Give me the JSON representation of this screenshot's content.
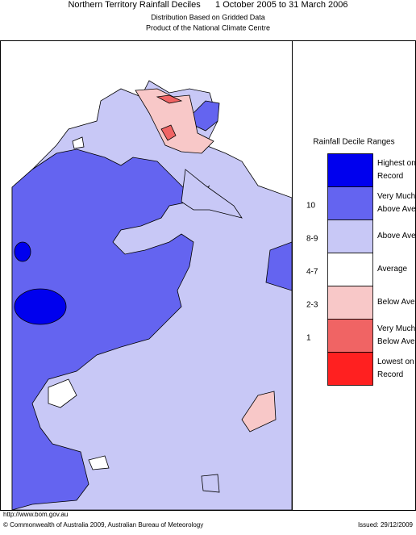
{
  "header": {
    "title": "Northern Territory Rainfall Deciles      1 October 2005 to 31 March 2006",
    "subtitle": [
      "Distribution Based on Gridded Data",
      "Product of the National Climate Centre"
    ]
  },
  "legend": {
    "title": "Rainfall Decile Ranges",
    "items": [
      {
        "lines": [
          "Highest on",
          "Record"
        ],
        "color": "#0000ee"
      },
      {
        "range": "10",
        "lines": [
          "Very Much",
          "Above Average"
        ],
        "color": "#6464f0"
      },
      {
        "range": "8-9",
        "lines": [
          "Above Average"
        ],
        "color": "#c8c8f6"
      },
      {
        "range": "4-7",
        "lines": [
          "Average"
        ],
        "color": "#ffffff"
      },
      {
        "range": "2-3",
        "lines": [
          "Below Average"
        ],
        "color": "#f8c8c8"
      },
      {
        "range": "1",
        "lines": [
          "Very Much",
          "Below Average"
        ],
        "color": "#f06464"
      },
      {
        "lines": [
          "Lowest on",
          "Record"
        ],
        "color": "#ff2020"
      }
    ]
  },
  "footer": {
    "url": "http://www.bom.gov.au",
    "copyright": "© Commonwealth of Australia 2009, Australian Bureau of Meteorology",
    "issued": "Issued: 29/12/2009"
  }
}
